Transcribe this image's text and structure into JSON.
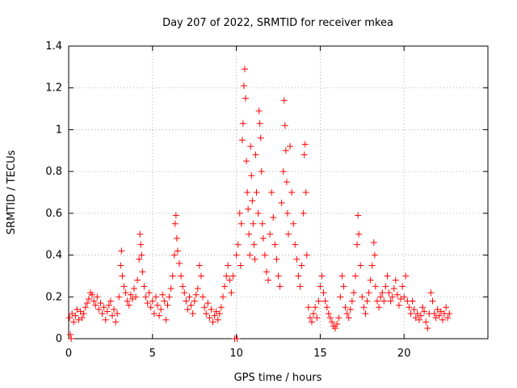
{
  "chart_data": {
    "type": "scatter",
    "title": "Day 207 of 2022, SRMTID for receiver mkea",
    "xlabel": "GPS time / hours",
    "ylabel": "SRMTID / TECUs",
    "xlim": [
      0,
      25
    ],
    "ylim": [
      0,
      1.4
    ],
    "x_ticks": [
      0,
      5,
      10,
      15,
      20
    ],
    "y_ticks": [
      0,
      0.2,
      0.4,
      0.6,
      0.8,
      1,
      1.2,
      1.4
    ],
    "x_tick_labels": [
      "0",
      "5",
      "10",
      "15",
      "20"
    ],
    "y_tick_labels": [
      "0",
      "0.2",
      "0.4",
      "0.6",
      "0.8",
      "1",
      "1.2",
      "1.4"
    ],
    "grid": true,
    "marker": "+",
    "series": [
      {
        "name": "SRMTID",
        "color": "#ff0000",
        "points": [
          [
            0.05,
            0.1
          ],
          [
            0.1,
            0.02
          ],
          [
            0.15,
            0.0
          ],
          [
            0.2,
            0.12
          ],
          [
            0.3,
            0.08
          ],
          [
            0.4,
            0.11
          ],
          [
            0.5,
            0.14
          ],
          [
            0.6,
            0.09
          ],
          [
            0.7,
            0.13
          ],
          [
            0.8,
            0.1
          ],
          [
            0.9,
            0.12
          ],
          [
            1.0,
            0.15
          ],
          [
            1.1,
            0.17
          ],
          [
            1.2,
            0.19
          ],
          [
            1.3,
            0.22
          ],
          [
            1.4,
            0.21
          ],
          [
            1.5,
            0.18
          ],
          [
            1.6,
            0.16
          ],
          [
            1.7,
            0.2
          ],
          [
            1.8,
            0.14
          ],
          [
            1.9,
            0.17
          ],
          [
            2.0,
            0.12
          ],
          [
            2.1,
            0.15
          ],
          [
            2.2,
            0.09
          ],
          [
            2.3,
            0.13
          ],
          [
            2.4,
            0.16
          ],
          [
            2.5,
            0.18
          ],
          [
            2.6,
            0.11
          ],
          [
            2.7,
            0.14
          ],
          [
            2.8,
            0.08
          ],
          [
            2.9,
            0.12
          ],
          [
            3.0,
            0.2
          ],
          [
            3.1,
            0.35
          ],
          [
            3.15,
            0.42
          ],
          [
            3.2,
            0.3
          ],
          [
            3.3,
            0.25
          ],
          [
            3.4,
            0.22
          ],
          [
            3.5,
            0.18
          ],
          [
            3.6,
            0.16
          ],
          [
            3.7,
            0.21
          ],
          [
            3.8,
            0.19
          ],
          [
            3.9,
            0.24
          ],
          [
            4.0,
            0.2
          ],
          [
            4.1,
            0.28
          ],
          [
            4.2,
            0.38
          ],
          [
            4.25,
            0.5
          ],
          [
            4.3,
            0.45
          ],
          [
            4.35,
            0.4
          ],
          [
            4.4,
            0.32
          ],
          [
            4.5,
            0.25
          ],
          [
            4.6,
            0.2
          ],
          [
            4.7,
            0.17
          ],
          [
            4.8,
            0.22
          ],
          [
            4.9,
            0.15
          ],
          [
            5.0,
            0.18
          ],
          [
            5.1,
            0.12
          ],
          [
            5.2,
            0.2
          ],
          [
            5.3,
            0.16
          ],
          [
            5.4,
            0.11
          ],
          [
            5.5,
            0.14
          ],
          [
            5.6,
            0.21
          ],
          [
            5.7,
            0.18
          ],
          [
            5.8,
            0.09
          ],
          [
            5.9,
            0.16
          ],
          [
            6.0,
            0.2
          ],
          [
            6.1,
            0.24
          ],
          [
            6.2,
            0.3
          ],
          [
            6.3,
            0.4
          ],
          [
            6.35,
            0.55
          ],
          [
            6.4,
            0.59
          ],
          [
            6.45,
            0.48
          ],
          [
            6.5,
            0.42
          ],
          [
            6.6,
            0.36
          ],
          [
            6.7,
            0.3
          ],
          [
            6.8,
            0.25
          ],
          [
            6.9,
            0.22
          ],
          [
            7.0,
            0.18
          ],
          [
            7.1,
            0.14
          ],
          [
            7.2,
            0.2
          ],
          [
            7.3,
            0.16
          ],
          [
            7.4,
            0.12
          ],
          [
            7.5,
            0.18
          ],
          [
            7.6,
            0.21
          ],
          [
            7.7,
            0.24
          ],
          [
            7.8,
            0.35
          ],
          [
            7.9,
            0.3
          ],
          [
            8.0,
            0.2
          ],
          [
            8.1,
            0.15
          ],
          [
            8.2,
            0.12
          ],
          [
            8.3,
            0.17
          ],
          [
            8.4,
            0.1
          ],
          [
            8.5,
            0.14
          ],
          [
            8.6,
            0.08
          ],
          [
            8.7,
            0.11
          ],
          [
            8.8,
            0.13
          ],
          [
            8.9,
            0.09
          ],
          [
            9.0,
            0.12
          ],
          [
            9.1,
            0.15
          ],
          [
            9.2,
            0.2
          ],
          [
            9.3,
            0.25
          ],
          [
            9.4,
            0.3
          ],
          [
            9.5,
            0.35
          ],
          [
            9.6,
            0.28
          ],
          [
            9.7,
            0.22
          ],
          [
            9.8,
            0.3
          ],
          [
            9.9,
            0.0
          ],
          [
            10.0,
            0.4
          ],
          [
            10.05,
            0.0
          ],
          [
            10.1,
            0.45
          ],
          [
            10.2,
            0.6
          ],
          [
            10.25,
            0.35
          ],
          [
            10.3,
            0.55
          ],
          [
            10.35,
            0.95
          ],
          [
            10.4,
            1.03
          ],
          [
            10.45,
            1.21
          ],
          [
            10.5,
            1.29
          ],
          [
            10.55,
            1.15
          ],
          [
            10.6,
            0.85
          ],
          [
            10.65,
            0.7
          ],
          [
            10.7,
            0.62
          ],
          [
            10.75,
            0.5
          ],
          [
            10.8,
            0.4
          ],
          [
            10.85,
            0.92
          ],
          [
            10.9,
            0.78
          ],
          [
            10.95,
            0.66
          ],
          [
            11.0,
            0.55
          ],
          [
            11.05,
            0.45
          ],
          [
            11.1,
            0.38
          ],
          [
            11.15,
            0.88
          ],
          [
            11.2,
            0.7
          ],
          [
            11.3,
            0.6
          ],
          [
            11.35,
            1.09
          ],
          [
            11.4,
            1.03
          ],
          [
            11.45,
            0.96
          ],
          [
            11.5,
            0.8
          ],
          [
            11.55,
            0.55
          ],
          [
            11.6,
            0.48
          ],
          [
            11.7,
            0.4
          ],
          [
            11.8,
            0.32
          ],
          [
            11.9,
            0.28
          ],
          [
            12.0,
            0.5
          ],
          [
            12.1,
            0.7
          ],
          [
            12.2,
            0.58
          ],
          [
            12.3,
            0.45
          ],
          [
            12.4,
            0.38
          ],
          [
            12.5,
            0.3
          ],
          [
            12.6,
            0.25
          ],
          [
            12.7,
            0.65
          ],
          [
            12.8,
            0.8
          ],
          [
            12.85,
            1.14
          ],
          [
            12.9,
            1.02
          ],
          [
            12.95,
            0.9
          ],
          [
            13.0,
            0.75
          ],
          [
            13.05,
            0.6
          ],
          [
            13.1,
            0.5
          ],
          [
            13.2,
            0.92
          ],
          [
            13.3,
            0.7
          ],
          [
            13.4,
            0.55
          ],
          [
            13.5,
            0.45
          ],
          [
            13.6,
            0.38
          ],
          [
            13.7,
            0.3
          ],
          [
            13.8,
            0.25
          ],
          [
            13.9,
            0.35
          ],
          [
            14.0,
            0.6
          ],
          [
            14.05,
            0.88
          ],
          [
            14.1,
            0.93
          ],
          [
            14.15,
            0.7
          ],
          [
            14.2,
            0.4
          ],
          [
            14.3,
            0.15
          ],
          [
            14.4,
            0.1
          ],
          [
            14.5,
            0.08
          ],
          [
            14.6,
            0.12
          ],
          [
            14.7,
            0.15
          ],
          [
            14.8,
            0.1
          ],
          [
            14.9,
            0.18
          ],
          [
            15.0,
            0.25
          ],
          [
            15.1,
            0.3
          ],
          [
            15.2,
            0.22
          ],
          [
            15.3,
            0.18
          ],
          [
            15.4,
            0.15
          ],
          [
            15.5,
            0.12
          ],
          [
            15.6,
            0.1
          ],
          [
            15.7,
            0.08
          ],
          [
            15.8,
            0.06
          ],
          [
            15.9,
            0.05
          ],
          [
            16.0,
            0.07
          ],
          [
            16.1,
            0.1
          ],
          [
            16.2,
            0.2
          ],
          [
            16.3,
            0.3
          ],
          [
            16.4,
            0.25
          ],
          [
            16.5,
            0.15
          ],
          [
            16.6,
            0.12
          ],
          [
            16.7,
            0.1
          ],
          [
            16.8,
            0.14
          ],
          [
            16.9,
            0.18
          ],
          [
            17.0,
            0.22
          ],
          [
            17.1,
            0.3
          ],
          [
            17.2,
            0.45
          ],
          [
            17.25,
            0.59
          ],
          [
            17.3,
            0.5
          ],
          [
            17.4,
            0.35
          ],
          [
            17.5,
            0.2
          ],
          [
            17.6,
            0.15
          ],
          [
            17.7,
            0.12
          ],
          [
            17.8,
            0.18
          ],
          [
            17.9,
            0.22
          ],
          [
            18.0,
            0.28
          ],
          [
            18.1,
            0.35
          ],
          [
            18.2,
            0.46
          ],
          [
            18.25,
            0.4
          ],
          [
            18.3,
            0.25
          ],
          [
            18.4,
            0.18
          ],
          [
            18.5,
            0.15
          ],
          [
            18.6,
            0.2
          ],
          [
            18.7,
            0.22
          ],
          [
            18.8,
            0.18
          ],
          [
            18.9,
            0.25
          ],
          [
            19.0,
            0.3
          ],
          [
            19.1,
            0.22
          ],
          [
            19.2,
            0.18
          ],
          [
            19.3,
            0.2
          ],
          [
            19.4,
            0.24
          ],
          [
            19.5,
            0.28
          ],
          [
            19.6,
            0.21
          ],
          [
            19.7,
            0.16
          ],
          [
            19.8,
            0.19
          ],
          [
            19.9,
            0.25
          ],
          [
            20.0,
            0.2
          ],
          [
            20.1,
            0.3
          ],
          [
            20.2,
            0.18
          ],
          [
            20.3,
            0.15
          ],
          [
            20.4,
            0.12
          ],
          [
            20.5,
            0.18
          ],
          [
            20.6,
            0.14
          ],
          [
            20.7,
            0.1
          ],
          [
            20.8,
            0.12
          ],
          [
            20.9,
            0.09
          ],
          [
            21.0,
            0.11
          ],
          [
            21.1,
            0.15
          ],
          [
            21.2,
            0.13
          ],
          [
            21.3,
            0.08
          ],
          [
            21.4,
            0.05
          ],
          [
            21.5,
            0.12
          ],
          [
            21.6,
            0.22
          ],
          [
            21.7,
            0.18
          ],
          [
            21.8,
            0.12
          ],
          [
            21.9,
            0.1
          ],
          [
            22.0,
            0.14
          ],
          [
            22.1,
            0.11
          ],
          [
            22.2,
            0.13
          ],
          [
            22.3,
            0.09
          ],
          [
            22.4,
            0.12
          ],
          [
            22.5,
            0.15
          ],
          [
            22.6,
            0.1
          ],
          [
            22.7,
            0.12
          ]
        ]
      }
    ]
  }
}
